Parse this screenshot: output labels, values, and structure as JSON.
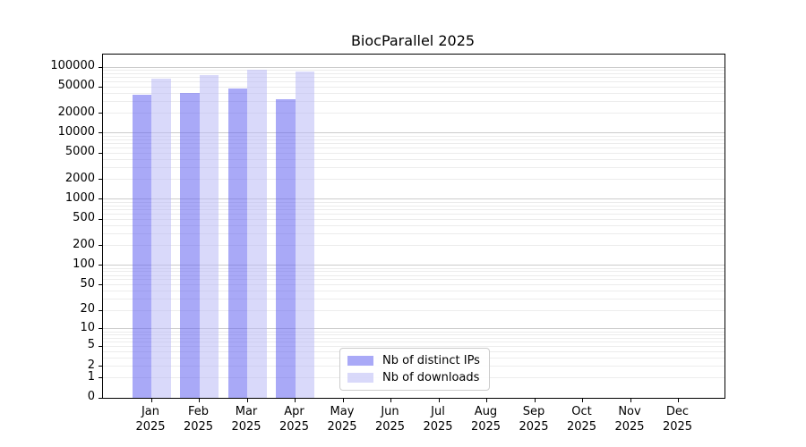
{
  "chart_data": {
    "type": "bar",
    "title": "BiocParallel 2025",
    "categories": [
      "Jan",
      "Feb",
      "Mar",
      "Apr",
      "May",
      "Jun",
      "Jul",
      "Aug",
      "Sep",
      "Oct",
      "Nov",
      "Dec"
    ],
    "category_year": "2025",
    "series": [
      {
        "name": "Nb of distinct IPs",
        "fill": "rgba(99,99,241,0.55)",
        "values": [
          38000,
          41000,
          47000,
          33000,
          null,
          null,
          null,
          null,
          null,
          null,
          null,
          null
        ]
      },
      {
        "name": "Nb of downloads",
        "fill": "rgba(186,186,246,0.55)",
        "values": [
          66000,
          75000,
          90000,
          85000,
          null,
          null,
          null,
          null,
          null,
          null,
          null,
          null
        ]
      }
    ],
    "yscale": "log1p",
    "yticks": [
      0,
      1,
      2,
      5,
      10,
      20,
      50,
      100,
      200,
      500,
      1000,
      2000,
      5000,
      10000,
      20000,
      50000,
      100000
    ],
    "ymax_tick": 100000,
    "grid": "horizontal",
    "legend_position": "lower center",
    "colors": {
      "major_grid": "#cccccc",
      "minor_grid": "#ececec",
      "spine": "#000000",
      "text": "#000000"
    }
  }
}
